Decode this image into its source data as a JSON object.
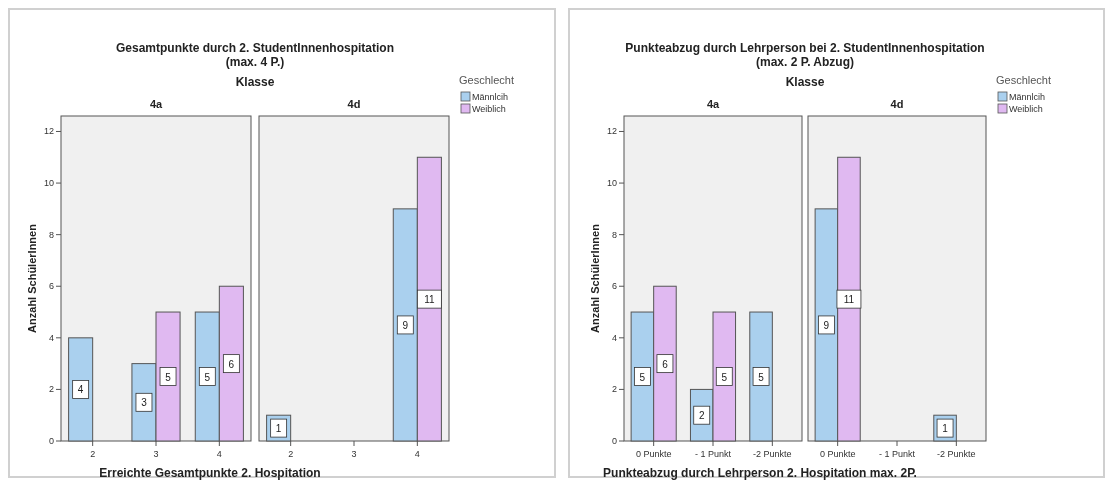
{
  "chart_data": [
    {
      "type": "bar",
      "title": "4a",
      "annotations": [
        "Gesamtpunkte durch 2. StudentInnenhospitation",
        "(max. 4 P.)",
        "Klasse"
      ],
      "xlabel": "Erreichte Gesamtpunkte 2. Hospitation",
      "ylabel": "Anzahl SchülerInnen",
      "categories": [
        "2",
        "3",
        "4"
      ],
      "ylim": [
        0,
        12.6
      ],
      "yticks": [
        0,
        2,
        4,
        6,
        8,
        10,
        12
      ],
      "series": [
        {
          "color": "#aad0ee",
          "values": [
            4,
            3,
            5
          ],
          "value_labels": [
            "4",
            "3",
            "5"
          ]
        },
        {
          "color": "#e0b9f1",
          "values": [
            0,
            5,
            6
          ],
          "value_labels": [
            null,
            "5",
            "6"
          ]
        }
      ]
    },
    {
      "type": "bar",
      "title": "4d",
      "categories": [
        "2",
        "3",
        "4"
      ],
      "ylim": [
        0,
        12.6
      ],
      "tick_labels": "x",
      "legend": "top right",
      "legend_title": "Geschlecht",
      "series": [
        {
          "name": "Männlcih",
          "color": "#aad0ee",
          "values": [
            1,
            null,
            9
          ],
          "value_labels": [
            "1",
            null,
            "9"
          ]
        },
        {
          "name": "Weiblich",
          "color": "#e0b9f1",
          "values": [
            null,
            null,
            11
          ],
          "value_labels": [
            null,
            null,
            "11"
          ]
        }
      ]
    },
    {
      "type": "bar",
      "title": "4a",
      "annotations": [
        "Punkteabzug durch Lehrperson bei 2. StudentInnenhospitation",
        "(max. 2 P. Abzug)",
        "Klasse"
      ],
      "xlabel": "Punkteabzug durch Lehrperson 2. Hospitation max. 2P.",
      "ylabel": "Anzahl SchülerInnen",
      "categories": [
        "0 Punkte",
        "- 1 Punkt",
        "-2 Punkte"
      ],
      "ylim": [
        0,
        12.6
      ],
      "yticks": [
        0,
        2,
        4,
        6,
        8,
        10,
        12
      ],
      "series": [
        {
          "color": "#aad0ee",
          "values": [
            5,
            2,
            5
          ],
          "value_labels": [
            "5",
            "2",
            "5"
          ]
        },
        {
          "color": "#e0b9f1",
          "values": [
            6,
            5,
            null
          ],
          "value_labels": [
            "6",
            "5",
            null
          ]
        }
      ]
    },
    {
      "type": "bar",
      "title": "4d",
      "categories": [
        "0 Punkte",
        "- 1 Punkt",
        "-2 Punkte"
      ],
      "ylim": [
        0,
        12.6
      ],
      "tick_labels": "x",
      "legend": "top right",
      "legend_title": "Geschlecht",
      "series": [
        {
          "name": "Männlcih",
          "color": "#aad0ee",
          "values": [
            9,
            null,
            1
          ],
          "value_labels": [
            "9",
            null,
            "1"
          ]
        },
        {
          "name": "Weiblich",
          "color": "#e0b9f1",
          "values": [
            11,
            null,
            null
          ],
          "value_labels": [
            "11",
            null,
            null
          ]
        }
      ]
    }
  ]
}
